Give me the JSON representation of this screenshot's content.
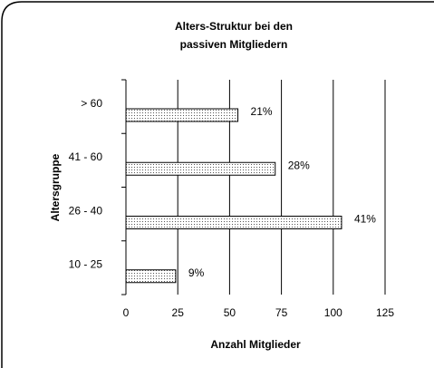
{
  "chart_data": {
    "type": "hbar",
    "title": [
      "Alters-Struktur bei den",
      "passiven Mitgliedern"
    ],
    "x_label": "Anzahl Mitglieder",
    "y_label": "Altersgruppe",
    "categories": [
      "> 60",
      "41 - 60",
      "26 - 40",
      "10 - 25"
    ],
    "values": [
      54,
      72,
      104,
      24
    ],
    "data_labels": [
      "21%",
      "28%",
      "41%",
      "9%"
    ],
    "xlim": [
      0,
      125
    ],
    "xticks": [
      0,
      25,
      50,
      75,
      100,
      125
    ],
    "grid": true,
    "color": "#ffffff"
  }
}
